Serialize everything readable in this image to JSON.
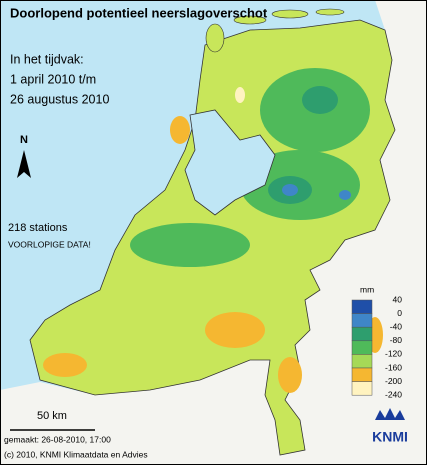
{
  "header": {
    "title": "Doorlopend potentieel neerslagoverschot"
  },
  "period": {
    "label": "In het tijdvak:",
    "from": "1 april 2010 t/m",
    "to": "26 augustus 2010"
  },
  "north_arrow": "N",
  "stations": "218 stations",
  "note": "VOORLOPIGE DATA!",
  "scale_bar": "50 km",
  "legend": {
    "unit": "mm",
    "labels": [
      40,
      0,
      -40,
      -80,
      -120,
      -160,
      -200,
      -240
    ],
    "colors": [
      "#1f4fa8",
      "#3f86c8",
      "#2e9e6e",
      "#4fba5a",
      "#a6d957",
      "#f5b731",
      "#fff3c0"
    ]
  },
  "footer": {
    "made": "gemaakt: 26-08-2010, 17:00",
    "copyright": "(c) 2010, KNMI Klimaatdata en Advies"
  },
  "logo": "KNMI"
}
